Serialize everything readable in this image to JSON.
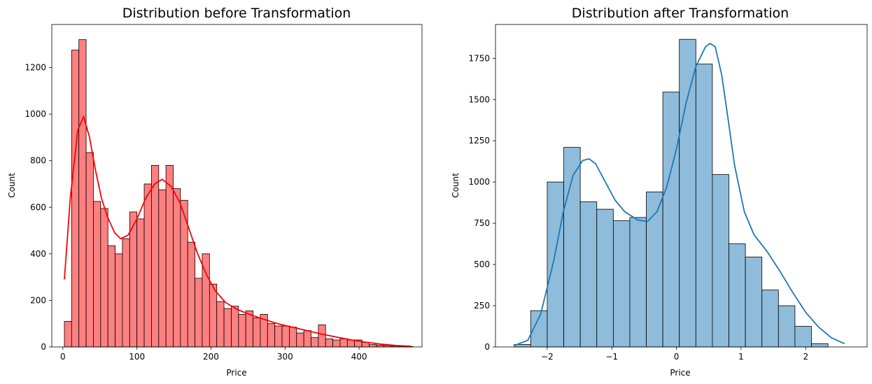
{
  "chart_data": [
    {
      "type": "bar",
      "title": "Distribution before Transformation",
      "xlabel": "Price",
      "ylabel": "Count",
      "xlim": [
        -15,
        485
      ],
      "ylim": [
        0,
        1385
      ],
      "xticks": [
        0,
        100,
        200,
        300,
        400
      ],
      "yticks": [
        0,
        200,
        400,
        600,
        800,
        1000,
        1200
      ],
      "bin_start": 2,
      "bin_width": 9.8,
      "counts": [
        110,
        1275,
        1320,
        835,
        625,
        595,
        435,
        400,
        465,
        580,
        550,
        700,
        780,
        675,
        780,
        680,
        630,
        450,
        295,
        400,
        270,
        195,
        165,
        175,
        140,
        155,
        125,
        140,
        100,
        90,
        90,
        85,
        60,
        70,
        40,
        95,
        35,
        30,
        35,
        30,
        30,
        20,
        10,
        8,
        6,
        4,
        3,
        2
      ],
      "kde": {
        "x": [
          2,
          10,
          20,
          28,
          36,
          44,
          52,
          60,
          70,
          78,
          88,
          100,
          112,
          124,
          134,
          146,
          158,
          170,
          182,
          194,
          206,
          220,
          236,
          252,
          270,
          290,
          310,
          330,
          350,
          370,
          390,
          410,
          430,
          450,
          470
        ],
        "y": [
          290,
          640,
          930,
          990,
          900,
          760,
          640,
          560,
          490,
          465,
          480,
          550,
          640,
          700,
          720,
          690,
          620,
          510,
          400,
          310,
          240,
          190,
          160,
          140,
          120,
          100,
          85,
          70,
          55,
          42,
          30,
          20,
          12,
          6,
          3
        ]
      },
      "style": {
        "color": "#ff0000",
        "fill": "#ff8080",
        "edge": "#000000"
      }
    },
    {
      "type": "bar",
      "title": "Distribution after Transformation",
      "xlabel": "Price",
      "ylabel": "Count",
      "xlim": [
        -2.8,
        2.95
      ],
      "ylim": [
        0,
        1955
      ],
      "xticks": [
        -2,
        -1,
        0,
        1,
        2
      ],
      "yticks": [
        0,
        250,
        500,
        750,
        1000,
        1250,
        1500,
        1750
      ],
      "bin_start": -2.51,
      "bin_width": 0.2555,
      "counts": [
        15,
        220,
        1000,
        1210,
        880,
        835,
        765,
        785,
        940,
        1545,
        1865,
        1715,
        1045,
        625,
        545,
        345,
        250,
        125,
        20
      ],
      "kde": {
        "x": [
          -2.5,
          -2.3,
          -2.1,
          -1.9,
          -1.75,
          -1.6,
          -1.45,
          -1.35,
          -1.25,
          -1.1,
          -0.95,
          -0.8,
          -0.6,
          -0.45,
          -0.3,
          -0.15,
          0,
          0.15,
          0.3,
          0.45,
          0.52,
          0.6,
          0.7,
          0.8,
          0.9,
          1.05,
          1.2,
          1.4,
          1.6,
          1.8,
          2.0,
          2.2,
          2.4,
          2.6
        ],
        "y": [
          10,
          40,
          200,
          520,
          820,
          1040,
          1130,
          1140,
          1110,
          1000,
          890,
          820,
          770,
          760,
          820,
          970,
          1200,
          1480,
          1700,
          1820,
          1840,
          1820,
          1650,
          1380,
          1100,
          820,
          680,
          580,
          460,
          330,
          210,
          120,
          55,
          20
        ]
      },
      "style": {
        "color": "#1f77b4",
        "fill": "#8fbcdb",
        "edge": "#000000"
      }
    }
  ]
}
